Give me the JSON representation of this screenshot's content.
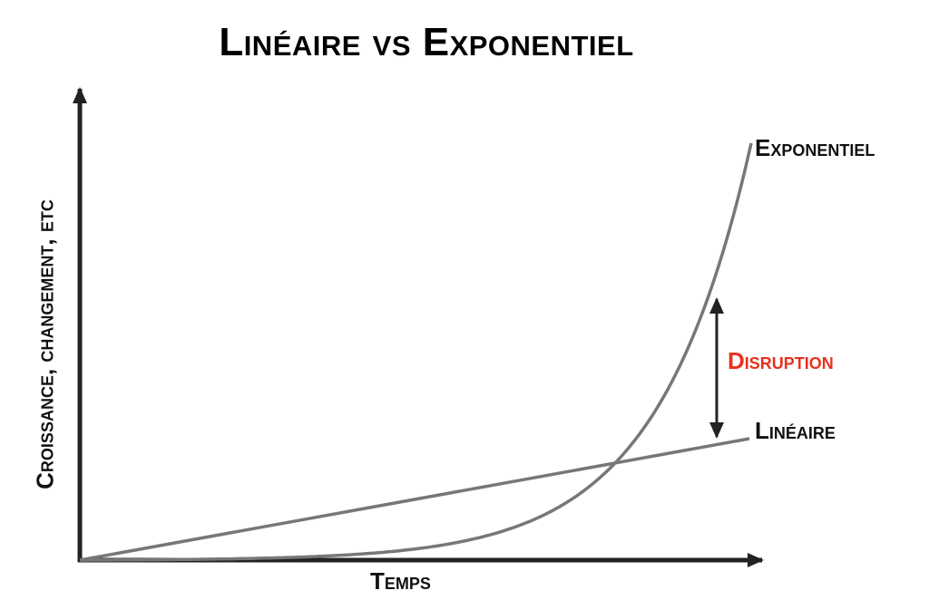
{
  "title": "Linéaire vs Exponentiel",
  "axes": {
    "x_label": "Temps",
    "y_label": "Croissance, changement, etc"
  },
  "curves": {
    "exponential_label": "Exponentiel",
    "linear_label": "Linéaire"
  },
  "annotation": {
    "label": "Disruption",
    "color": "#e8321e"
  },
  "colors": {
    "curve": "#777777",
    "axis": "#222222",
    "text": "#111111"
  }
}
